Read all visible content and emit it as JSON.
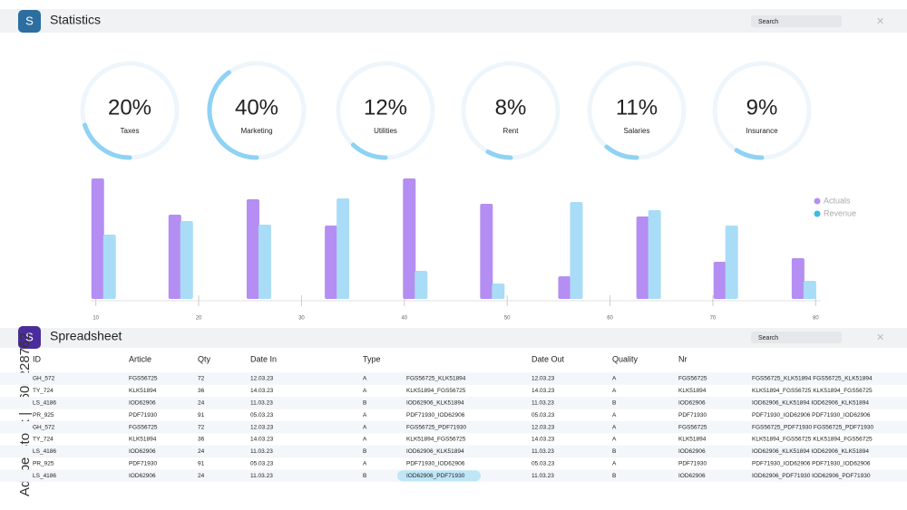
{
  "header": {
    "icon": "S",
    "title": "Statistics",
    "search": "Search"
  },
  "gauges": [
    {
      "value": 20,
      "label": "20%",
      "name": "Taxes"
    },
    {
      "value": 40,
      "label": "40%",
      "name": "Marketing"
    },
    {
      "value": 12,
      "label": "12%",
      "name": "Utilities"
    },
    {
      "value": 8,
      "label": "8%",
      "name": "Rent"
    },
    {
      "value": 11,
      "label": "11%",
      "name": "Salaries"
    },
    {
      "value": 9,
      "label": "9%",
      "name": "Insurance"
    }
  ],
  "chart_data": {
    "type": "bar",
    "x": [
      10.8,
      18.3,
      25.9,
      33.5,
      41.1,
      48.6,
      56.2,
      63.8,
      71.3,
      78.9
    ],
    "xlim": [
      9.5,
      80.5
    ],
    "xticks": [
      10,
      20,
      30,
      40,
      50,
      60,
      70,
      80
    ],
    "ylim": [
      0,
      140
    ],
    "series": [
      {
        "name": "Actuals",
        "color": "#b48ef2",
        "values": [
          133,
          93,
          110,
          81,
          133,
          105,
          25,
          91,
          41,
          45
        ]
      },
      {
        "name": "Revenue",
        "color": "#a9dcf7",
        "values": [
          71,
          86,
          82,
          111,
          31,
          17,
          107,
          98,
          81,
          20
        ]
      }
    ],
    "legend": "upper right",
    "legend_colors": [
      "#b48ef2",
      "#3fb8e6"
    ]
  },
  "spreadsheet": {
    "icon": "S",
    "title": "Spreadsheet",
    "search": "Search",
    "columns": [
      "ID",
      "Article",
      "Qty",
      "Date In",
      "Type",
      null,
      "Date Out",
      "Quality",
      "Nr",
      null
    ],
    "rows": [
      [
        "GH_572",
        "FGS56725",
        72,
        "12.03.23",
        "A",
        "FGS56725_KLK51894",
        "12.03.23",
        "A",
        "FGS56725",
        "FGS56725_KLK51894 FGS56725_KLK51894"
      ],
      [
        "TY_724",
        "KLK51894",
        36,
        "14.03.23",
        "A",
        "KLK51894_FGS56725",
        "14.03.23",
        "A",
        "KLK51894",
        "KLK51894_FGS56725 KLK51894_FGS56725"
      ],
      [
        "LS_4186",
        "IOD62906",
        24,
        "11.03.23",
        "B",
        "IOD62906_KLK51894",
        "11.03.23",
        "B",
        "IOD62906",
        "IOD62906_KLK51894 IOD62906_KLK51894"
      ],
      [
        "PR_925",
        "PDF71930",
        91,
        "05.03.23",
        "A",
        "PDF71930_IOD62906",
        "05.03.23",
        "A",
        "PDF71930",
        "PDF71930_IOD62906 PDF71930_IOD62906"
      ],
      [
        "GH_572",
        "FGS56725",
        72,
        "12.03.23",
        "A",
        "FGS56725_PDF71930",
        "12.03.23",
        "A",
        "FGS56725",
        "FGS56725_PDF71930 FGS56725_PDF71930"
      ],
      [
        "TY_724",
        "KLK51894",
        36,
        "14.03.23",
        "A",
        "KLK51894_FGS56725",
        "14.03.23",
        "A",
        "KLK51894",
        "KLK51894_FGS56725 KLK51894_FGS56725"
      ],
      [
        "LS_4186",
        "IOD62906",
        24,
        "11.03.23",
        "B",
        "IOD62906_KLK51894",
        "11.03.23",
        "B",
        "IOD62906",
        "IOD62906_KLK51894 IOD62906_KLK51894"
      ],
      [
        "PR_925",
        "PDF71930",
        91,
        "05.03.23",
        "A",
        "PDF71930_IOD62906",
        "05.03.23",
        "A",
        "PDF71930",
        "PDF71930_IOD62906 PDF71930_IOD62906"
      ],
      [
        "LS_4186",
        "IOD62906",
        24,
        "11.03.23",
        "B",
        "IOD62906_PDF71930",
        "11.03.23",
        "B",
        "IOD62906",
        "IOD62906_PDF71930 IOD62906_PDF71930"
      ]
    ],
    "highlight": [
      8,
      5
    ]
  },
  "watermark": "Adobe Stock | #605228762"
}
